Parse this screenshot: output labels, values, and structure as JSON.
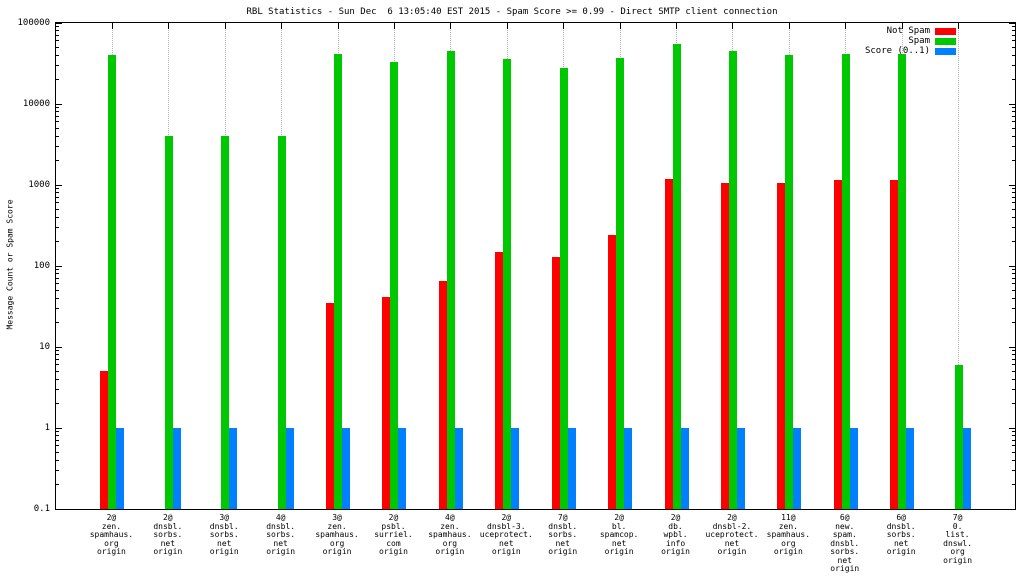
{
  "title": "RBL Statistics - Sun Dec  6 13:05:40 EST 2015 - Spam Score >= 0.99 - Direct SMTP client connection",
  "ylabel": "Message Count or Spam Score",
  "chart_data": {
    "type": "bar",
    "scale": "log",
    "ylim": [
      0.1,
      100000
    ],
    "y_ticks": [
      "100000",
      "10000",
      "1000",
      "100",
      "10",
      "1",
      "0.1"
    ],
    "grid": "vertical-dotted",
    "legend_position": "top-right",
    "categories": [
      [
        "2@",
        "zen.",
        "spamhaus.",
        "org",
        "origin"
      ],
      [
        "2@",
        "dnsbl.",
        "sorbs.",
        "net",
        "origin"
      ],
      [
        "3@",
        "dnsbl.",
        "sorbs.",
        "net",
        "origin"
      ],
      [
        "4@",
        "dnsbl.",
        "sorbs.",
        "net",
        "origin"
      ],
      [
        "3@",
        "zen.",
        "spamhaus.",
        "org",
        "origin"
      ],
      [
        "2@",
        "psbl.",
        "surriel.",
        "com",
        "origin"
      ],
      [
        "4@",
        "zen.",
        "spamhaus.",
        "org",
        "origin"
      ],
      [
        "2@",
        "dnsbl-3.",
        "uceprotect.",
        "net",
        "origin"
      ],
      [
        "7@",
        "dnsbl.",
        "sorbs.",
        "net",
        "origin"
      ],
      [
        "2@",
        "bl.",
        "spamcop.",
        "net",
        "origin"
      ],
      [
        "2@",
        "db.",
        "wpbl.",
        "info",
        "origin"
      ],
      [
        "2@",
        "dnsbl-2.",
        "uceprotect.",
        "net",
        "origin"
      ],
      [
        "11@",
        "zen.",
        "spamhaus.",
        "org",
        "origin"
      ],
      [
        "6@",
        "new.",
        "spam.",
        "dnsbl.",
        "sorbs.",
        "net",
        "origin"
      ],
      [
        "6@",
        "dnsbl.",
        "sorbs.",
        "net",
        "origin"
      ],
      [
        "7@",
        "0.",
        "list.",
        "dnswl.",
        "org",
        "origin"
      ]
    ],
    "series": [
      {
        "name": "Not Spam",
        "color": "#ff0000",
        "values": [
          5,
          null,
          null,
          null,
          35,
          42,
          65,
          150,
          130,
          240,
          1200,
          1050,
          1050,
          1150,
          1150,
          null
        ]
      },
      {
        "name": "Spam",
        "color": "#00c800",
        "values": [
          40000,
          4000,
          4000,
          4000,
          42000,
          33000,
          45000,
          36000,
          28000,
          37000,
          55000,
          45000,
          40000,
          41000,
          42000,
          6
        ]
      },
      {
        "name": "Score (0..1)",
        "color": "#0080ff",
        "values": [
          1,
          1,
          1,
          1,
          1,
          1,
          1,
          1,
          1,
          1,
          1,
          1,
          1,
          1,
          1,
          1
        ]
      }
    ]
  }
}
